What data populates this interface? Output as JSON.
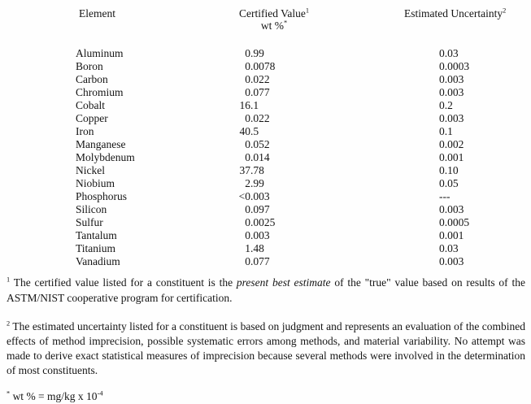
{
  "table": {
    "headers": {
      "element": "Element",
      "certified_value": "Certified Value",
      "certified_value_sup": "1",
      "unit": "wt %",
      "unit_sup": "*",
      "estimated_uncertainty": "Estimated Uncertainty",
      "estimated_uncertainty_sup": "2"
    },
    "rows": [
      {
        "element": "Aluminum",
        "certified_value": "0.99",
        "uncertainty": "0.03"
      },
      {
        "element": "Boron",
        "certified_value": "0.0078",
        "uncertainty": "0.0003"
      },
      {
        "element": "Carbon",
        "certified_value": "0.022",
        "uncertainty": "0.003"
      },
      {
        "element": "Chromium",
        "certified_value": "0.077",
        "uncertainty": "0.003"
      },
      {
        "element": "Cobalt",
        "certified_value": "16.1",
        "uncertainty": "0.2"
      },
      {
        "element": "Copper",
        "certified_value": "0.022",
        "uncertainty": "0.003"
      },
      {
        "element": "Iron",
        "certified_value": "40.5",
        "uncertainty": "0.1"
      },
      {
        "element": "Manganese",
        "certified_value": "0.052",
        "uncertainty": "0.002"
      },
      {
        "element": "Molybdenum",
        "certified_value": "0.014",
        "uncertainty": "0.001"
      },
      {
        "element": "Nickel",
        "certified_value": "37.78",
        "uncertainty": "0.10"
      },
      {
        "element": "Niobium",
        "certified_value": "2.99",
        "uncertainty": "0.05"
      },
      {
        "element": "Phosphorus",
        "certified_value": "<0.003",
        "uncertainty": "---"
      },
      {
        "element": "Silicon",
        "certified_value": "0.097",
        "uncertainty": "0.003"
      },
      {
        "element": "Sulfur",
        "certified_value": "0.0025",
        "uncertainty": "0.0005"
      },
      {
        "element": "Tantalum",
        "certified_value": "0.003",
        "uncertainty": "0.001"
      },
      {
        "element": "Titanium",
        "certified_value": "1.48",
        "uncertainty": "0.03"
      },
      {
        "element": "Vanadium",
        "certified_value": "0.077",
        "uncertainty": "0.003"
      }
    ]
  },
  "footnotes": {
    "fn1": {
      "sup": "1",
      "pre": " The certified value listed for a constituent is the ",
      "italic": "present best estimate",
      "post": " of the \"true\" value based on results of the ASTM/NIST cooperative program for certification."
    },
    "fn2": {
      "sup": "2",
      "text": " The estimated uncertainty listed for a constituent is based on judgment and represents an evaluation of the combined effects of method imprecision, possible systematic errors among methods, and material variability.  No attempt was made to derive exact statistical measures of imprecision because several methods were involved in the determination of most constituents."
    },
    "fn3": {
      "sup": "*",
      "pre": " wt % = mg/kg x 10",
      "exp": "-4"
    }
  }
}
